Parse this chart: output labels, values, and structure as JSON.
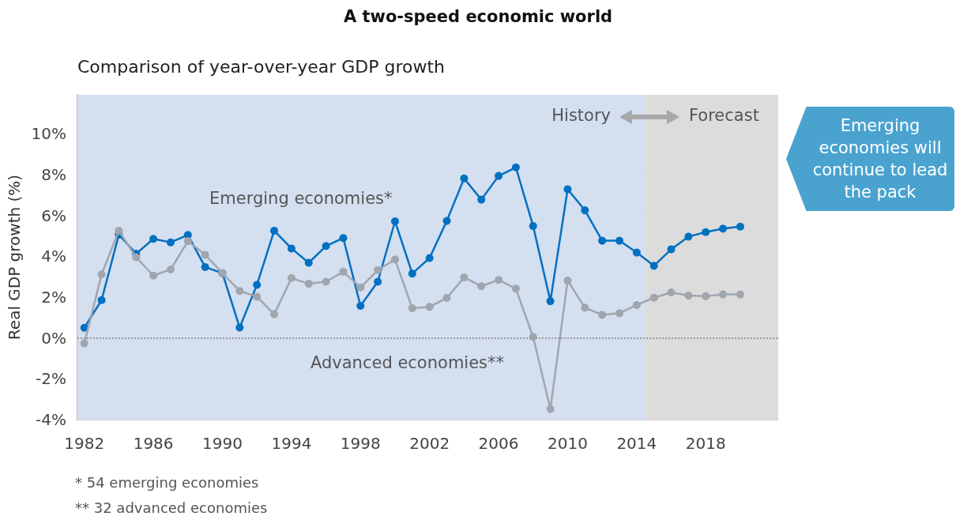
{
  "chart_data": {
    "type": "line",
    "title": "A two-speed economic world",
    "subtitle": "Comparison of year-over-year GDP growth",
    "ylabel": "Real GDP growth (%)",
    "x": [
      1982,
      1983,
      1984,
      1985,
      1986,
      1987,
      1988,
      1989,
      1990,
      1991,
      1992,
      1993,
      1994,
      1995,
      1996,
      1997,
      1998,
      1999,
      2000,
      2001,
      2002,
      2003,
      2004,
      2005,
      2006,
      2007,
      2008,
      2009,
      2010,
      2011,
      2012,
      2013,
      2014,
      2015,
      2016,
      2017,
      2018,
      2019,
      2020
    ],
    "series": [
      {
        "name": "Emerging economies*",
        "color": "#0070c0",
        "values": [
          0.5,
          1.85,
          5.06,
          4.12,
          4.85,
          4.68,
          5.04,
          3.47,
          3.17,
          0.51,
          2.6,
          5.25,
          4.38,
          3.68,
          4.5,
          4.89,
          1.57,
          2.75,
          5.71,
          3.15,
          3.91,
          5.73,
          7.81,
          6.77,
          7.93,
          8.35,
          5.48,
          1.8,
          7.28,
          6.25,
          4.76,
          4.76,
          4.18,
          3.53,
          4.34,
          4.96,
          5.18,
          5.35,
          5.45
        ]
      },
      {
        "name": "Advanced economies**",
        "color": "#a0a6ad",
        "values": [
          -0.27,
          3.11,
          5.25,
          3.95,
          3.05,
          3.35,
          4.74,
          4.07,
          3.17,
          2.3,
          2.02,
          1.16,
          2.93,
          2.65,
          2.75,
          3.24,
          2.47,
          3.32,
          3.84,
          1.45,
          1.52,
          1.96,
          2.96,
          2.53,
          2.84,
          2.41,
          0.05,
          -3.48,
          2.81,
          1.48,
          1.13,
          1.21,
          1.61,
          1.97,
          2.23,
          2.07,
          2.04,
          2.13,
          2.13
        ]
      }
    ],
    "xlim": [
      1981.6,
      2022.2
    ],
    "xticks": [
      1982,
      1986,
      1990,
      1994,
      1998,
      2002,
      2006,
      2010,
      2014,
      2018
    ],
    "ylim": [
      -4,
      11.9
    ],
    "yticks": [
      {
        "value": -4,
        "label": "-4%"
      },
      {
        "value": -2,
        "label": "-2%"
      },
      {
        "value": 0,
        "label": "0%"
      },
      {
        "value": 2,
        "label": "2%"
      },
      {
        "value": 4,
        "label": "4%"
      },
      {
        "value": 6,
        "label": "6%"
      },
      {
        "value": 8,
        "label": "8%"
      },
      {
        "value": 10,
        "label": "10%"
      }
    ],
    "grid": "y",
    "marker": "circle",
    "line_style": "solid",
    "ref_lines": [
      {
        "axis": "y",
        "value": 0,
        "line_style": "dotted",
        "color": "#9a9a9a"
      }
    ],
    "bands": [
      {
        "axis": "x",
        "from": 1981.6,
        "to": 2014.5,
        "label": "History",
        "color": "#d4dff0"
      },
      {
        "axis": "x",
        "from": 2014.5,
        "to": 2022.2,
        "label": "Forecast",
        "color": "#dcdcdc"
      }
    ],
    "annotations": [
      "Emerging economies will continue to lead the pack",
      "* 54 emerging economies",
      "** 32 advanced economies"
    ]
  }
}
